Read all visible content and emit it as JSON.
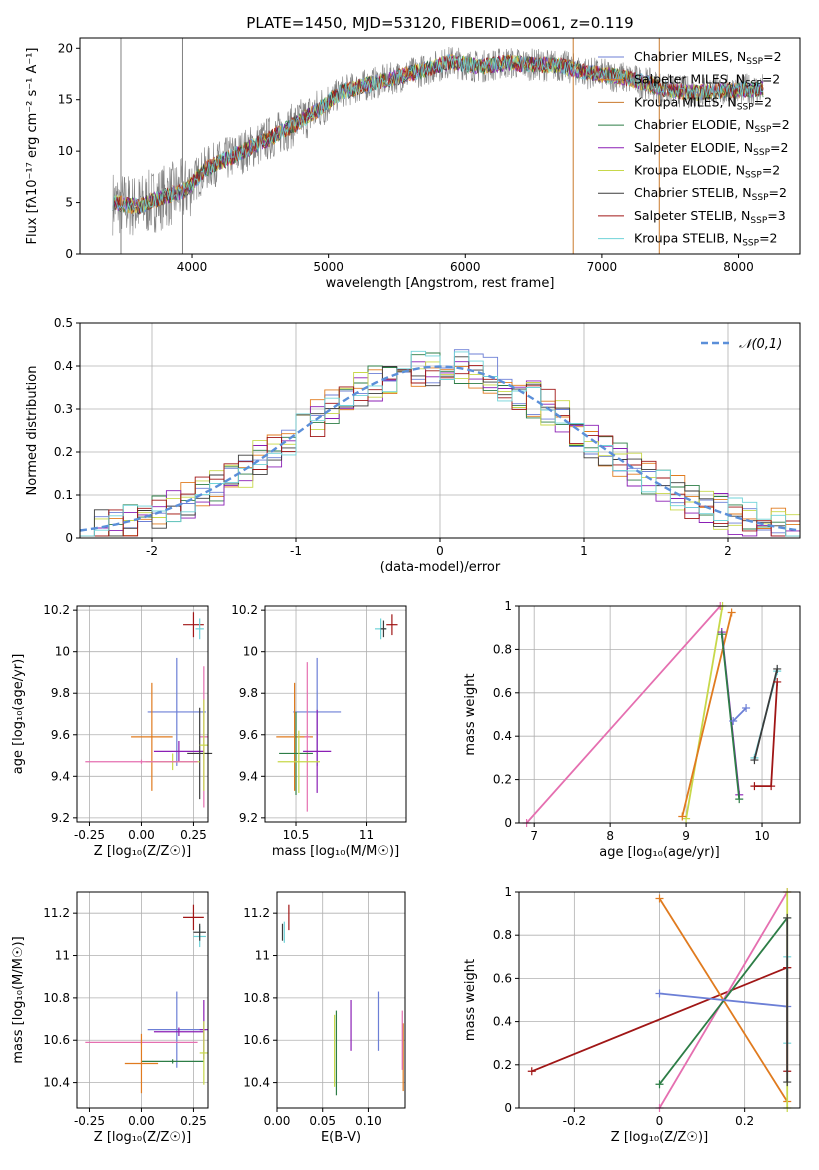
{
  "title": "PLATE=1450, MJD=53120, FIBERID=0061, z=0.119",
  "colors": {
    "cm": "#6c7fd6",
    "sm": "#e07b1f",
    "km": "#c97a2d",
    "ce": "#2d7d46",
    "se": "#8b1fb5",
    "ke": "#c7d84a",
    "cs": "#3b3b3b",
    "ss": "#a01616",
    "ks": "#6fd3d8",
    "pink": "#e56fb0",
    "gauss": "#5b8fd9",
    "data": "#808080"
  },
  "chart_data": [
    {
      "id": "spectrum",
      "type": "line",
      "xlabel": "wavelength [Angstrom, rest frame]",
      "ylabel": "Flux [fλ10⁻¹⁷ erg cm⁻² s⁻¹ A⁻¹]",
      "xlim": [
        3180,
        8450
      ],
      "ylim": [
        0,
        21
      ],
      "xticks": [
        4000,
        5000,
        6000,
        7000,
        8000
      ],
      "yticks": [
        0,
        5,
        10,
        15,
        20
      ],
      "grid": false,
      "legend_position": "right",
      "series": [
        {
          "name": "Chabrier MILES, NSSP=2",
          "color": "cm"
        },
        {
          "name": "Salpeter MILES, NSSP=2",
          "color": "sm"
        },
        {
          "name": "Kroupa MILES, NSSP=2",
          "color": "km"
        },
        {
          "name": "Chabrier ELODIE, NSSP=2",
          "color": "ce"
        },
        {
          "name": "Salpeter ELODIE, NSSP=2",
          "color": "se"
        },
        {
          "name": "Kroupa ELODIE, NSSP=2",
          "color": "ke"
        },
        {
          "name": "Chabrier STELIB, NSSP=2",
          "color": "cs"
        },
        {
          "name": "Salpeter STELIB, NSSP=3",
          "color": "ss"
        },
        {
          "name": "Kroupa STELIB, NSSP=2",
          "color": "ks"
        }
      ],
      "continuum": [
        [
          3420,
          5
        ],
        [
          3600,
          4.6
        ],
        [
          3800,
          5.6
        ],
        [
          3950,
          6.2
        ],
        [
          4100,
          8.3
        ],
        [
          4300,
          9.5
        ],
        [
          4500,
          10.8
        ],
        [
          4700,
          12.2
        ],
        [
          4900,
          13.8
        ],
        [
          5100,
          15.8
        ],
        [
          5300,
          16.5
        ],
        [
          5500,
          17.2
        ],
        [
          5700,
          17.9
        ],
        [
          5900,
          18.7
        ],
        [
          6100,
          18.2
        ],
        [
          6300,
          18.6
        ],
        [
          6500,
          18.4
        ],
        [
          6700,
          18.3
        ],
        [
          6900,
          17.6
        ],
        [
          7100,
          17.3
        ],
        [
          7300,
          16.7
        ],
        [
          7500,
          15.9
        ],
        [
          7700,
          15.7
        ],
        [
          7900,
          15.9
        ],
        [
          8100,
          16
        ]
      ]
    },
    {
      "id": "residuals",
      "type": "line",
      "xlabel": "(data-model)/error",
      "ylabel": "Normed distribution",
      "xlim": [
        -2.5,
        2.5
      ],
      "ylim": [
        0,
        0.5
      ],
      "xticks": [
        -2,
        -1,
        0,
        1,
        2
      ],
      "yticks": [
        0,
        0.1,
        0.2,
        0.3,
        0.4,
        0.5
      ],
      "grid": true,
      "legend_position": "top-right",
      "gauss_label": "𝒩(0,1)"
    },
    {
      "id": "age-Z",
      "type": "scatter",
      "xlabel": "Z [log₁₀(Z/Z☉)]",
      "ylabel": "age [log₁₀(age/yr)]",
      "xlim": [
        -0.31,
        0.32
      ],
      "ylim": [
        9.18,
        10.22
      ],
      "xticks": [
        -0.25,
        0,
        0.25
      ],
      "yticks": [
        9.2,
        9.4,
        9.6,
        9.8,
        10.0,
        10.2
      ],
      "points": [
        {
          "x": 0.25,
          "y": 10.13,
          "xe": 0.05,
          "ye": 0.06,
          "c": "ss"
        },
        {
          "x": 0.28,
          "y": 10.11,
          "xe": 0.02,
          "ye": 0.05,
          "c": "ks"
        },
        {
          "x": 0.17,
          "y": 9.71,
          "xe": 0.14,
          "ye": 0.26,
          "c": "cm"
        },
        {
          "x": 0.05,
          "y": 9.59,
          "xe": 0.1,
          "ye": 0.26,
          "c": "sm"
        },
        {
          "x": 0.3,
          "y": 9.59,
          "xe": 0.02,
          "ye": 0.34,
          "c": "pink"
        },
        {
          "x": 0.18,
          "y": 9.52,
          "xe": 0.12,
          "ye": 0.05,
          "c": "se"
        },
        {
          "x": 0.28,
          "y": 9.51,
          "xe": 0.06,
          "ye": 0.22,
          "c": "cs"
        },
        {
          "x": 0.15,
          "y": 9.47,
          "xe": 0.13,
          "ye": 0.04,
          "c": "ke"
        },
        {
          "x": 0.3,
          "y": 9.55,
          "xe": 0.02,
          "ye": 0.22,
          "c": "ke"
        },
        {
          "x": 0,
          "y": 9.47,
          "xe": 0.27,
          "ye": 0.01,
          "c": "pink"
        }
      ]
    },
    {
      "id": "age-mass",
      "type": "scatter",
      "xlabel": "mass [log₁₀(M/M☉)]",
      "xlim": [
        10.28,
        11.28
      ],
      "ylim": [
        9.18,
        10.22
      ],
      "xticks": [
        10.5,
        11.0
      ],
      "yticks": [
        9.2,
        9.4,
        9.6,
        9.8,
        10.0,
        10.2
      ],
      "points": [
        {
          "x": 11.18,
          "y": 10.13,
          "xe": 0.04,
          "ye": 0.05,
          "c": "ss"
        },
        {
          "x": 11.1,
          "y": 10.11,
          "xe": 0.04,
          "ye": 0.05,
          "c": "ks"
        },
        {
          "x": 11.12,
          "y": 10.11,
          "xe": 0.02,
          "ye": 0.04,
          "c": "cs"
        },
        {
          "x": 10.65,
          "y": 9.71,
          "xe": 0.17,
          "ye": 0.26,
          "c": "cm"
        },
        {
          "x": 10.49,
          "y": 9.59,
          "xe": 0.13,
          "ye": 0.26,
          "c": "sm"
        },
        {
          "x": 10.58,
          "y": 9.59,
          "xe": 0.02,
          "ye": 0.36,
          "c": "pink"
        },
        {
          "x": 10.65,
          "y": 9.52,
          "xe": 0.1,
          "ye": 0.2,
          "c": "se"
        },
        {
          "x": 10.5,
          "y": 9.51,
          "xe": 0.12,
          "ye": 0.2,
          "c": "ce"
        },
        {
          "x": 10.52,
          "y": 9.47,
          "xe": 0.15,
          "ye": 0.15,
          "c": "ke"
        }
      ]
    },
    {
      "id": "weight-age",
      "type": "line",
      "xlabel": "age [log₁₀(age/yr)]",
      "ylabel": "mass weight",
      "xlim": [
        6.8,
        10.5
      ],
      "ylim": [
        0,
        1
      ],
      "xticks": [
        7,
        8,
        9,
        10
      ],
      "yticks": [
        0,
        0.2,
        0.4,
        0.6,
        0.8,
        1.0
      ],
      "lines": [
        {
          "c": "pink",
          "pts": [
            [
              6.9,
              0
            ],
            [
              9.45,
              1.0
            ]
          ]
        },
        {
          "c": "ke",
          "pts": [
            [
              9.0,
              0.02
            ],
            [
              9.48,
              1.0
            ]
          ]
        },
        {
          "c": "sm",
          "pts": [
            [
              8.95,
              0.03
            ],
            [
              9.6,
              0.97
            ]
          ]
        },
        {
          "c": "se",
          "pts": [
            [
              9.47,
              0.88
            ],
            [
              9.7,
              0.13
            ]
          ]
        },
        {
          "c": "ce",
          "pts": [
            [
              9.47,
              0.87
            ],
            [
              9.7,
              0.11
            ]
          ]
        },
        {
          "c": "cm",
          "pts": [
            [
              9.62,
              0.47
            ],
            [
              9.79,
              0.53
            ]
          ]
        },
        {
          "c": "ks",
          "pts": [
            [
              9.9,
              0.3
            ],
            [
              10.2,
              0.7
            ]
          ]
        },
        {
          "c": "cs",
          "pts": [
            [
              9.9,
              0.29
            ],
            [
              10.2,
              0.71
            ]
          ]
        },
        {
          "c": "ss",
          "pts": [
            [
              9.9,
              0.17
            ],
            [
              10.12,
              0.17
            ],
            [
              10.2,
              0.65
            ]
          ]
        }
      ]
    },
    {
      "id": "mass-Z",
      "type": "scatter",
      "xlabel": "Z [log₁₀(Z/Z☉)]",
      "ylabel": "mass [log₁₀(M/M☉)]",
      "xlim": [
        -0.31,
        0.32
      ],
      "ylim": [
        10.28,
        11.3
      ],
      "xticks": [
        -0.25,
        0,
        0.25
      ],
      "yticks": [
        10.4,
        10.6,
        10.8,
        11.0,
        11.2
      ],
      "points": [
        {
          "x": 0.25,
          "y": 11.18,
          "xe": 0.05,
          "ye": 0.06,
          "c": "ss"
        },
        {
          "x": 0.28,
          "y": 11.09,
          "xe": 0.03,
          "ye": 0.05,
          "c": "ks"
        },
        {
          "x": 0.28,
          "y": 11.11,
          "xe": 0.03,
          "ye": 0.04,
          "c": "cs"
        },
        {
          "x": 0.17,
          "y": 10.65,
          "xe": 0.14,
          "ye": 0.18,
          "c": "cm"
        },
        {
          "x": 0.3,
          "y": 10.65,
          "xe": 0.02,
          "ye": 0.14,
          "c": "se"
        },
        {
          "x": 0.18,
          "y": 10.64,
          "xe": 0.12,
          "ye": 0.02,
          "c": "se"
        },
        {
          "x": 0,
          "y": 10.59,
          "xe": 0.27,
          "ye": 0.01,
          "c": "pink"
        },
        {
          "x": 0.15,
          "y": 10.5,
          "xe": 0.15,
          "ye": 0.01,
          "c": "ce"
        },
        {
          "x": 0.3,
          "y": 10.54,
          "xe": 0.02,
          "ye": 0.15,
          "c": "ke"
        },
        {
          "x": 0,
          "y": 10.49,
          "xe": 0.08,
          "ye": 0.14,
          "c": "sm"
        }
      ]
    },
    {
      "id": "mass-ebv",
      "type": "scatter",
      "xlabel": "E(B-V)",
      "xlim": [
        0,
        0.14
      ],
      "ylim": [
        10.28,
        11.3
      ],
      "xticks": [
        0,
        0.05,
        0.1
      ],
      "yticks": [
        10.4,
        10.6,
        10.8,
        11.0,
        11.2
      ],
      "points": [
        {
          "x": 0.013,
          "y": 11.18,
          "ye": 0.06,
          "c": "ss"
        },
        {
          "x": 0.008,
          "y": 11.11,
          "ye": 0.05,
          "c": "ks"
        },
        {
          "x": 0.006,
          "y": 11.11,
          "ye": 0.04,
          "c": "cs"
        },
        {
          "x": 0.111,
          "y": 10.69,
          "ye": 0.14,
          "c": "cm"
        },
        {
          "x": 0.081,
          "y": 10.67,
          "ye": 0.12,
          "c": "se"
        },
        {
          "x": 0.063,
          "y": 10.55,
          "ye": 0.17,
          "c": "ke"
        },
        {
          "x": 0.065,
          "y": 10.54,
          "ye": 0.2,
          "c": "ce"
        },
        {
          "x": 0.138,
          "y": 10.52,
          "ye": 0.16,
          "c": "sm"
        },
        {
          "x": 0.137,
          "y": 10.6,
          "ye": 0.14,
          "c": "pink"
        }
      ]
    },
    {
      "id": "weight-Z",
      "type": "line",
      "xlabel": "Z [log₁₀(Z/Z☉)]",
      "ylabel": "mass weight",
      "xlim": [
        -0.33,
        0.33
      ],
      "ylim": [
        0,
        1
      ],
      "xticks": [
        -0.2,
        0,
        0.2
      ],
      "yticks": [
        0,
        0.2,
        0.4,
        0.6,
        0.8,
        1.0
      ],
      "lines": [
        {
          "c": "ss",
          "pts": [
            [
              -0.3,
              0.17
            ],
            [
              0.3,
              0.65
            ]
          ]
        },
        {
          "c": "sm",
          "pts": [
            [
              0,
              0.97
            ],
            [
              0.3,
              0.03
            ]
          ]
        },
        {
          "c": "pink",
          "pts": [
            [
              0,
              0
            ],
            [
              0.3,
              1.0
            ]
          ]
        },
        {
          "c": "ce",
          "pts": [
            [
              0,
              0.11
            ],
            [
              0.3,
              0.88
            ]
          ]
        },
        {
          "c": "cm",
          "pts": [
            [
              0,
              0.53
            ],
            [
              0.3,
              0.47
            ]
          ]
        },
        {
          "c": "ke",
          "pts": [
            [
              0.3,
              0
            ],
            [
              0.3,
              1.0
            ]
          ]
        },
        {
          "c": "ks",
          "pts": [
            [
              0.3,
              0.3
            ],
            [
              0.3,
              0.7
            ]
          ]
        },
        {
          "c": "ss",
          "pts": [
            [
              0.3,
              0.17
            ],
            [
              0.3,
              0.65
            ]
          ]
        },
        {
          "c": "cs",
          "pts": [
            [
              0.3,
              0.12
            ],
            [
              0.3,
              0.88
            ]
          ]
        }
      ]
    }
  ]
}
